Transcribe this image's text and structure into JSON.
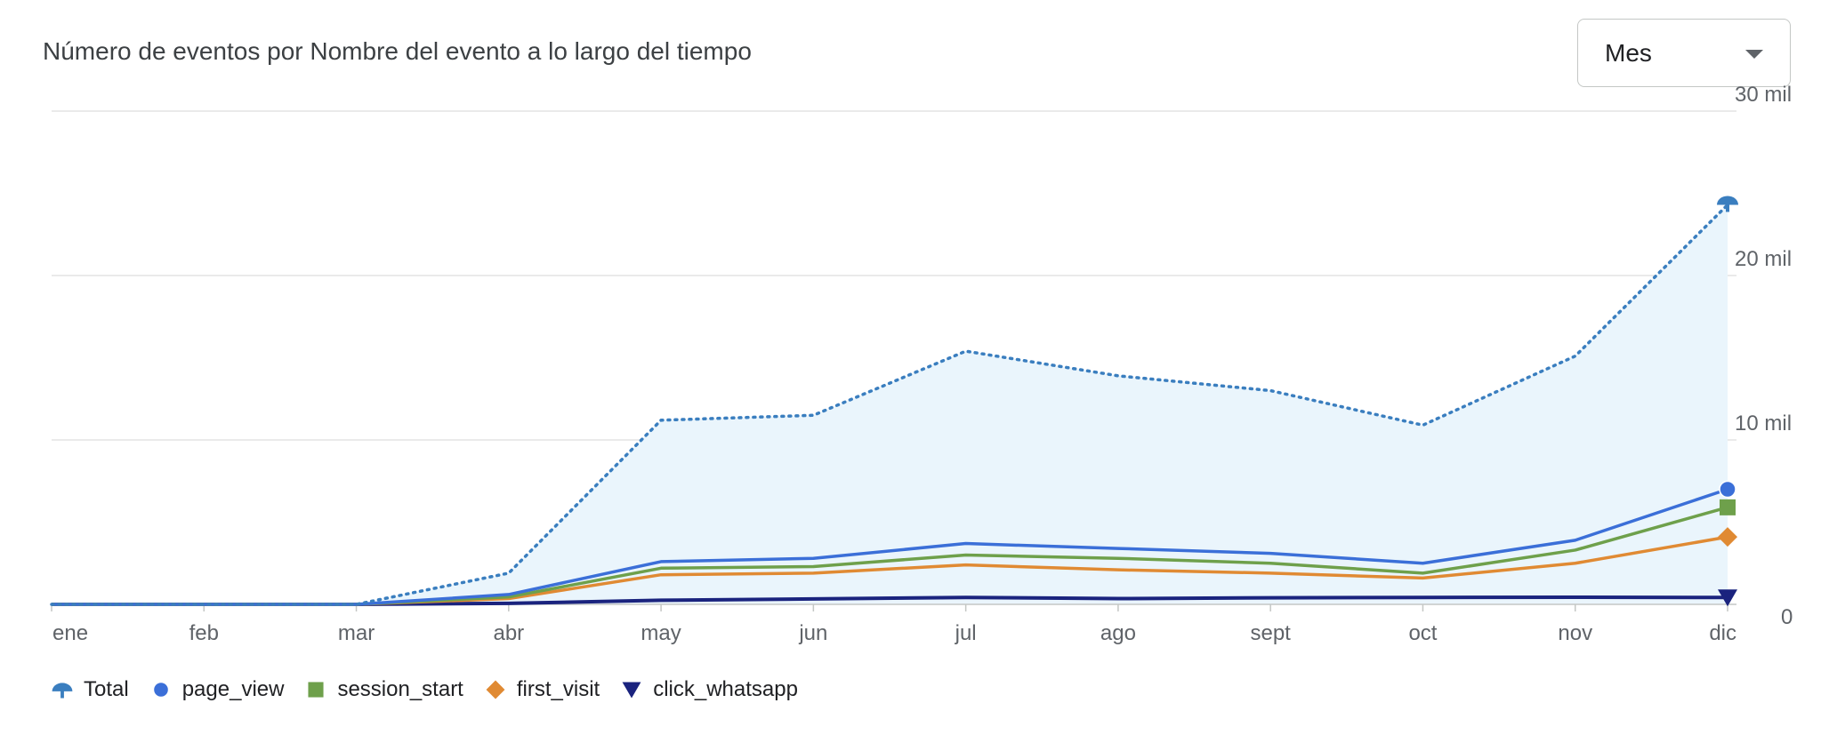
{
  "header": {
    "title": "Número de eventos por Nombre del evento a lo largo del tiempo"
  },
  "period_select": {
    "value": "Mes"
  },
  "chart_data": {
    "type": "line",
    "title": "Número de eventos por Nombre del evento a lo largo del tiempo",
    "categories": [
      "ene",
      "feb",
      "mar",
      "abr",
      "may",
      "jun",
      "jul",
      "ago",
      "sept",
      "oct",
      "nov",
      "dic"
    ],
    "y_ticks": [
      {
        "value": 0,
        "label": "0"
      },
      {
        "value": 10000,
        "label": "10 mil"
      },
      {
        "value": 20000,
        "label": "20 mil"
      },
      {
        "value": 30000,
        "label": "30 mil"
      }
    ],
    "ylim": [
      0,
      30000
    ],
    "y_axis_side": "right",
    "grid": true,
    "legend_position": "bottom-left",
    "series": [
      {
        "name": "Total",
        "color": "#3a7ebf",
        "style": "dotted",
        "fill": "#eaf5fc",
        "marker": "total-icon",
        "values": [
          0,
          0,
          0,
          1900,
          11200,
          11500,
          15400,
          13900,
          13000,
          10900,
          15100,
          24300
        ]
      },
      {
        "name": "page_view",
        "color": "#3b6fd8",
        "style": "solid",
        "marker": "circle",
        "values": [
          0,
          0,
          0,
          600,
          2600,
          2800,
          3700,
          3400,
          3100,
          2500,
          3900,
          7000
        ]
      },
      {
        "name": "session_start",
        "color": "#6ea04b",
        "style": "solid",
        "marker": "square",
        "values": [
          0,
          0,
          0,
          450,
          2200,
          2300,
          3000,
          2800,
          2500,
          1900,
          3300,
          5900
        ]
      },
      {
        "name": "first_visit",
        "color": "#e08a33",
        "style": "solid",
        "marker": "diamond",
        "values": [
          0,
          0,
          0,
          350,
          1800,
          1900,
          2400,
          2100,
          1900,
          1600,
          2500,
          4100
        ]
      },
      {
        "name": "click_whatsapp",
        "color": "#1a237e",
        "style": "solid",
        "marker": "triangle-down",
        "values": [
          0,
          0,
          0,
          60,
          250,
          330,
          420,
          350,
          400,
          420,
          430,
          420
        ]
      }
    ]
  }
}
